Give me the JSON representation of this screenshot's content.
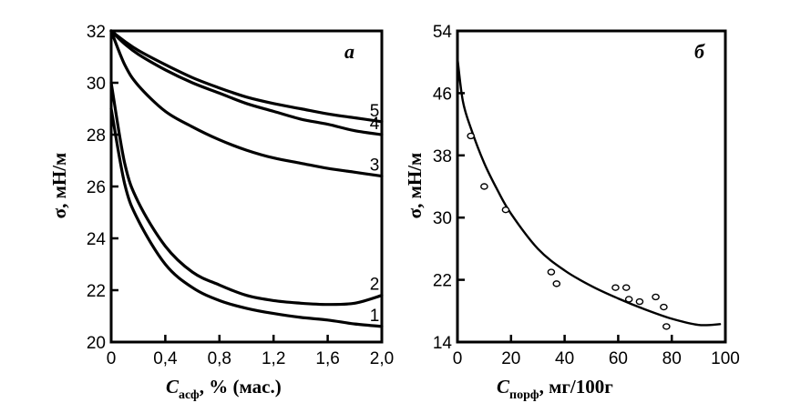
{
  "chart_data": [
    {
      "type": "line",
      "panel_label": "а",
      "xlabel_main": "C",
      "xlabel_sub": "асф",
      "xlabel_rest": ", % (мас.)",
      "ylabel": "σ, мН/м",
      "xlim": [
        0,
        2.0
      ],
      "ylim": [
        20,
        32
      ],
      "xticks": [
        0,
        0.4,
        0.8,
        1.2,
        1.6,
        2.0
      ],
      "xtick_labels": [
        "0",
        "0,4",
        "0,8",
        "1,2",
        "1,6",
        "2,0"
      ],
      "yticks": [
        20,
        22,
        24,
        26,
        28,
        30,
        32
      ],
      "ytick_labels": [
        "20",
        "22",
        "24",
        "26",
        "28",
        "30",
        "32"
      ],
      "series": [
        {
          "name": "1",
          "x": [
            0,
            0.1,
            0.2,
            0.4,
            0.6,
            0.8,
            1.0,
            1.2,
            1.4,
            1.6,
            1.8,
            2.0
          ],
          "y": [
            29.0,
            26.1,
            24.7,
            23.0,
            22.1,
            21.6,
            21.3,
            21.1,
            20.95,
            20.85,
            20.7,
            20.6
          ]
        },
        {
          "name": "2",
          "x": [
            0,
            0.1,
            0.2,
            0.4,
            0.6,
            0.8,
            1.0,
            1.2,
            1.4,
            1.6,
            1.8,
            2.0
          ],
          "y": [
            30.0,
            26.9,
            25.4,
            23.7,
            22.7,
            22.2,
            21.8,
            21.6,
            21.5,
            21.45,
            21.5,
            21.8
          ]
        },
        {
          "name": "3",
          "x": [
            0,
            0.1,
            0.2,
            0.4,
            0.6,
            0.8,
            1.0,
            1.2,
            1.4,
            1.6,
            1.8,
            2.0
          ],
          "y": [
            32.0,
            30.7,
            29.9,
            28.9,
            28.3,
            27.8,
            27.4,
            27.1,
            26.9,
            26.7,
            26.55,
            26.4
          ]
        },
        {
          "name": "4",
          "x": [
            0,
            0.1,
            0.2,
            0.4,
            0.6,
            0.8,
            1.0,
            1.2,
            1.4,
            1.6,
            1.8,
            2.0
          ],
          "y": [
            32.0,
            31.5,
            31.1,
            30.5,
            30.0,
            29.6,
            29.2,
            28.9,
            28.6,
            28.4,
            28.15,
            28.0
          ]
        },
        {
          "name": "5",
          "x": [
            0,
            0.1,
            0.2,
            0.4,
            0.6,
            0.8,
            1.0,
            1.2,
            1.4,
            1.6,
            1.8,
            2.0
          ],
          "y": [
            32.0,
            31.6,
            31.25,
            30.7,
            30.2,
            29.8,
            29.45,
            29.2,
            29.0,
            28.8,
            28.65,
            28.5
          ]
        }
      ]
    },
    {
      "type": "scatter",
      "panel_label": "б",
      "xlabel_main": "C",
      "xlabel_sub": "порф",
      "xlabel_rest": ", мг/100г",
      "ylabel": "σ, мН/м",
      "xlim": [
        0,
        100
      ],
      "ylim": [
        14,
        54
      ],
      "xticks": [
        0,
        20,
        40,
        60,
        80,
        100
      ],
      "xtick_labels": [
        "0",
        "20",
        "40",
        "60",
        "80",
        "100"
      ],
      "yticks": [
        14,
        22,
        30,
        38,
        46,
        54
      ],
      "ytick_labels": [
        "14",
        "22",
        "30",
        "38",
        "46",
        "54"
      ],
      "points": {
        "x": [
          5,
          10,
          18,
          35,
          37,
          59,
          63,
          64,
          68,
          74,
          77,
          78
        ],
        "y": [
          40.5,
          34,
          31,
          23,
          21.5,
          21,
          21,
          19.5,
          19.2,
          19.8,
          18.5,
          16
        ]
      },
      "fit": {
        "x": [
          0,
          2,
          5,
          10,
          15,
          20,
          30,
          40,
          50,
          60,
          70,
          80,
          90,
          98
        ],
        "y": [
          50.5,
          45,
          41.5,
          37,
          33.5,
          30.5,
          26.0,
          23.2,
          21.2,
          19.6,
          18.2,
          17.0,
          16.2,
          16.3
        ]
      }
    }
  ]
}
